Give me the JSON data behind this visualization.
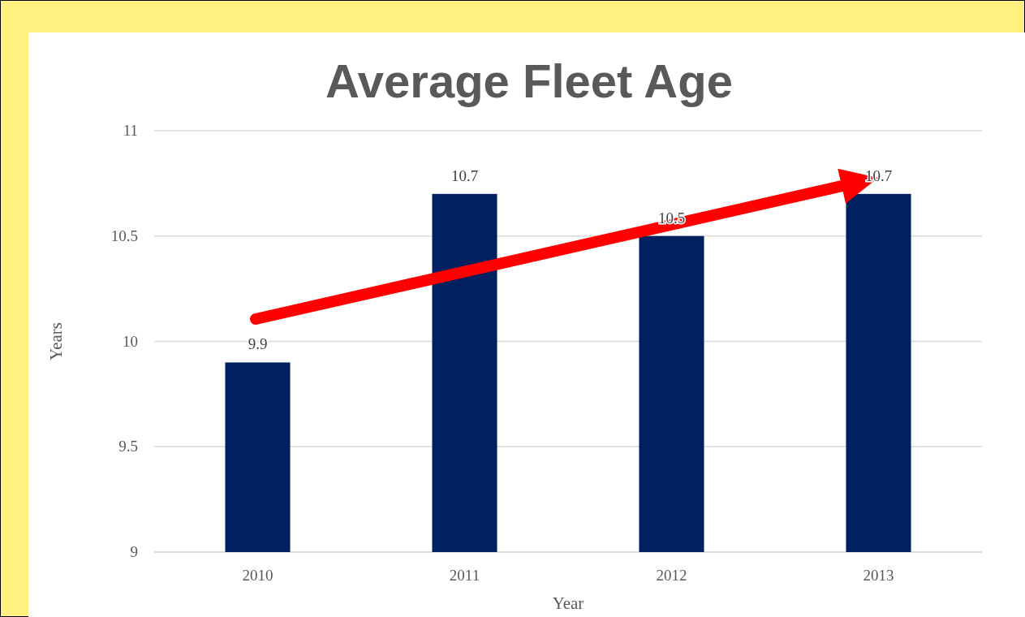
{
  "chart_data": {
    "type": "bar",
    "title": "Average Fleet Age",
    "xlabel": "Year",
    "ylabel": "Years",
    "categories": [
      "2010",
      "2011",
      "2012",
      "2013"
    ],
    "values": [
      9.9,
      10.7,
      10.5,
      10.7
    ],
    "color": "#002060",
    "ylim": [
      9,
      11
    ],
    "yticks": [
      9,
      9.5,
      10,
      10.5,
      11
    ],
    "grid": "y",
    "data_labels": true
  }
}
